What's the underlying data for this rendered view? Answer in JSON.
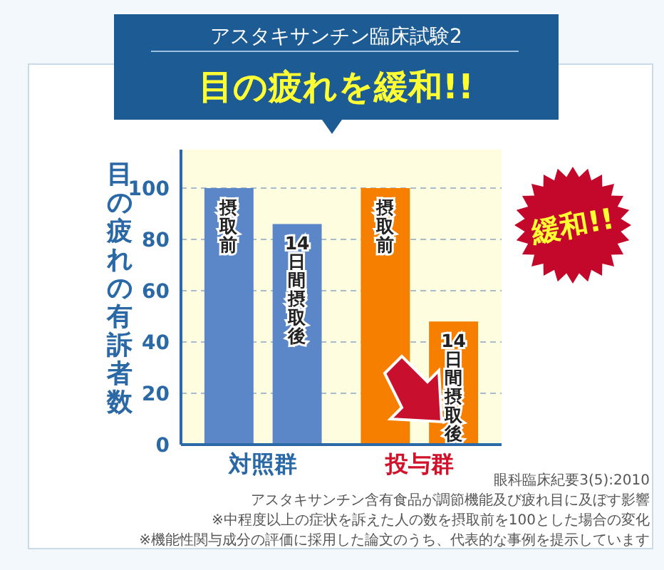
{
  "chart_data": {
    "type": "bar",
    "title": "目の疲れを緩和!!",
    "subtitle": "アスタキサンチン臨床試験2",
    "ylabel": "目の疲れの有訴者数",
    "categories": [
      "対照群",
      "投与群"
    ],
    "series": [
      {
        "name": "摂取前",
        "colors": [
          "#5b87c9",
          "#f77f00"
        ],
        "values": [
          100,
          100
        ]
      },
      {
        "name": "14日間摂取後",
        "colors": [
          "#5b87c9",
          "#f77f00"
        ],
        "values": [
          86,
          48
        ]
      }
    ],
    "ylim": [
      0,
      115
    ],
    "yticks": [
      0,
      20,
      40,
      60,
      80,
      100
    ],
    "grid": "y",
    "annotations": [
      "緩和!!",
      "眼科臨床紀要3(5):2010",
      "アスタキサンチン含有食品が調節機能及び疲れ目に及ぼす影響",
      "※中程度以上の症状を訴えた人の数を摂取前を100とした場合の変化",
      "※機能性関与成分の評価に採用した論文のうち、代表的な事例を提示しています"
    ]
  }
}
